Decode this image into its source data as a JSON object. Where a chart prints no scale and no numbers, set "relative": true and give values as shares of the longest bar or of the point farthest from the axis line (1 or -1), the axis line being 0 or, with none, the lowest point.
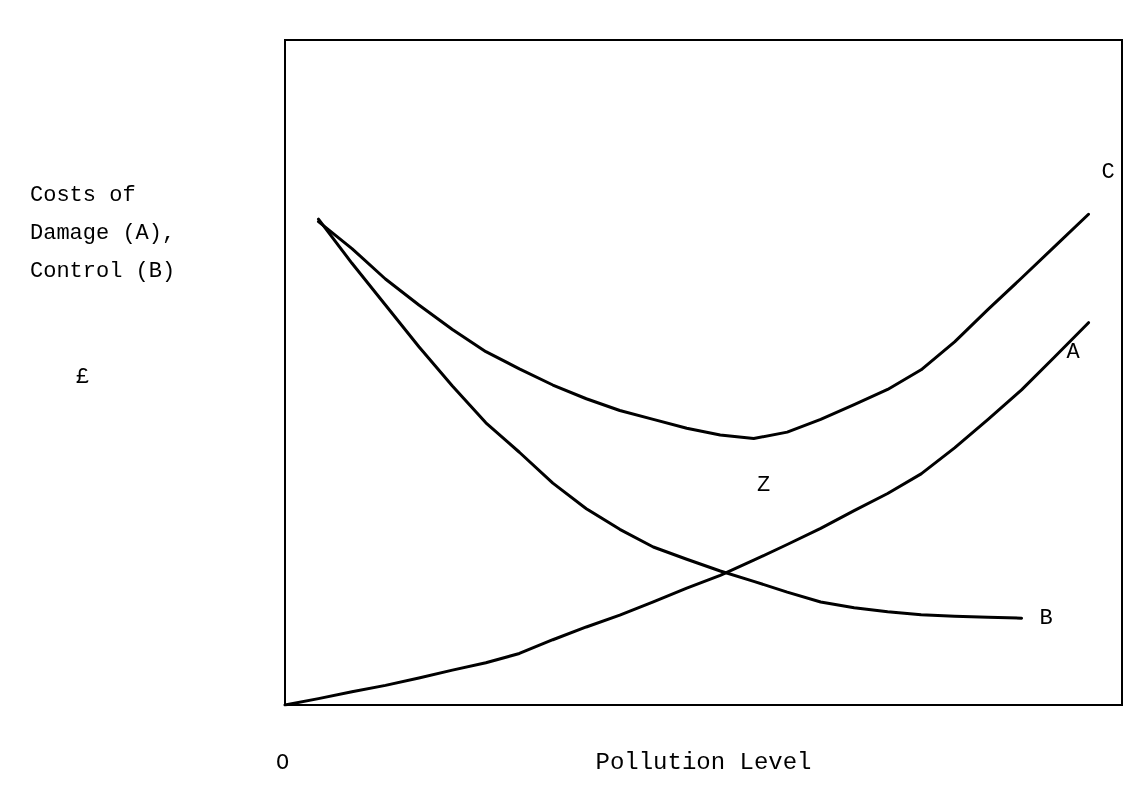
{
  "chart_data": {
    "type": "line",
    "relative": true,
    "xlabel": "Pollution Level",
    "ylabel": "Costs of Damage (A), Control (B)",
    "grid": false,
    "legend": false,
    "marker": "none",
    "line_style": "solid",
    "categories": [
      null,
      null,
      null,
      null,
      null,
      null,
      null,
      null,
      null,
      null,
      null,
      null,
      null,
      null,
      null,
      null,
      null,
      null,
      null,
      null,
      null,
      null,
      null,
      null,
      null,
      null
    ],
    "series": [
      {
        "name": "A",
        "color": "#000000",
        "values": [
          0,
          0.013,
          0.027,
          0.04,
          0.055,
          0.071,
          0.086,
          0.105,
          0.133,
          0.159,
          0.183,
          0.21,
          0.238,
          0.264,
          0.295,
          0.327,
          0.36,
          0.396,
          0.431,
          0.471,
          0.524,
          0.582,
          0.642,
          0.71,
          0.779,
          null
        ]
      },
      {
        "name": "B",
        "color": "#000000",
        "values": [
          null,
          0.99,
          0.9,
          0.815,
          0.73,
          0.65,
          0.575,
          0.515,
          0.452,
          0.4,
          0.358,
          0.322,
          0.297,
          0.273,
          0.252,
          0.23,
          0.21,
          0.198,
          0.19,
          0.184,
          0.181,
          0.179,
          0.177,
          null,
          null,
          null
        ]
      },
      {
        "name": "C",
        "color": "#000000",
        "values": [
          null,
          0.985,
          0.93,
          0.868,
          0.815,
          0.765,
          0.72,
          0.685,
          0.652,
          0.624,
          0.6,
          0.582,
          0.564,
          0.55,
          0.543,
          0.556,
          0.582,
          0.612,
          0.643,
          0.683,
          0.74,
          0.806,
          0.87,
          0.935,
          1.0,
          null
        ]
      }
    ],
    "annotations": [
      "Z",
      "O",
      "£"
    ]
  }
}
